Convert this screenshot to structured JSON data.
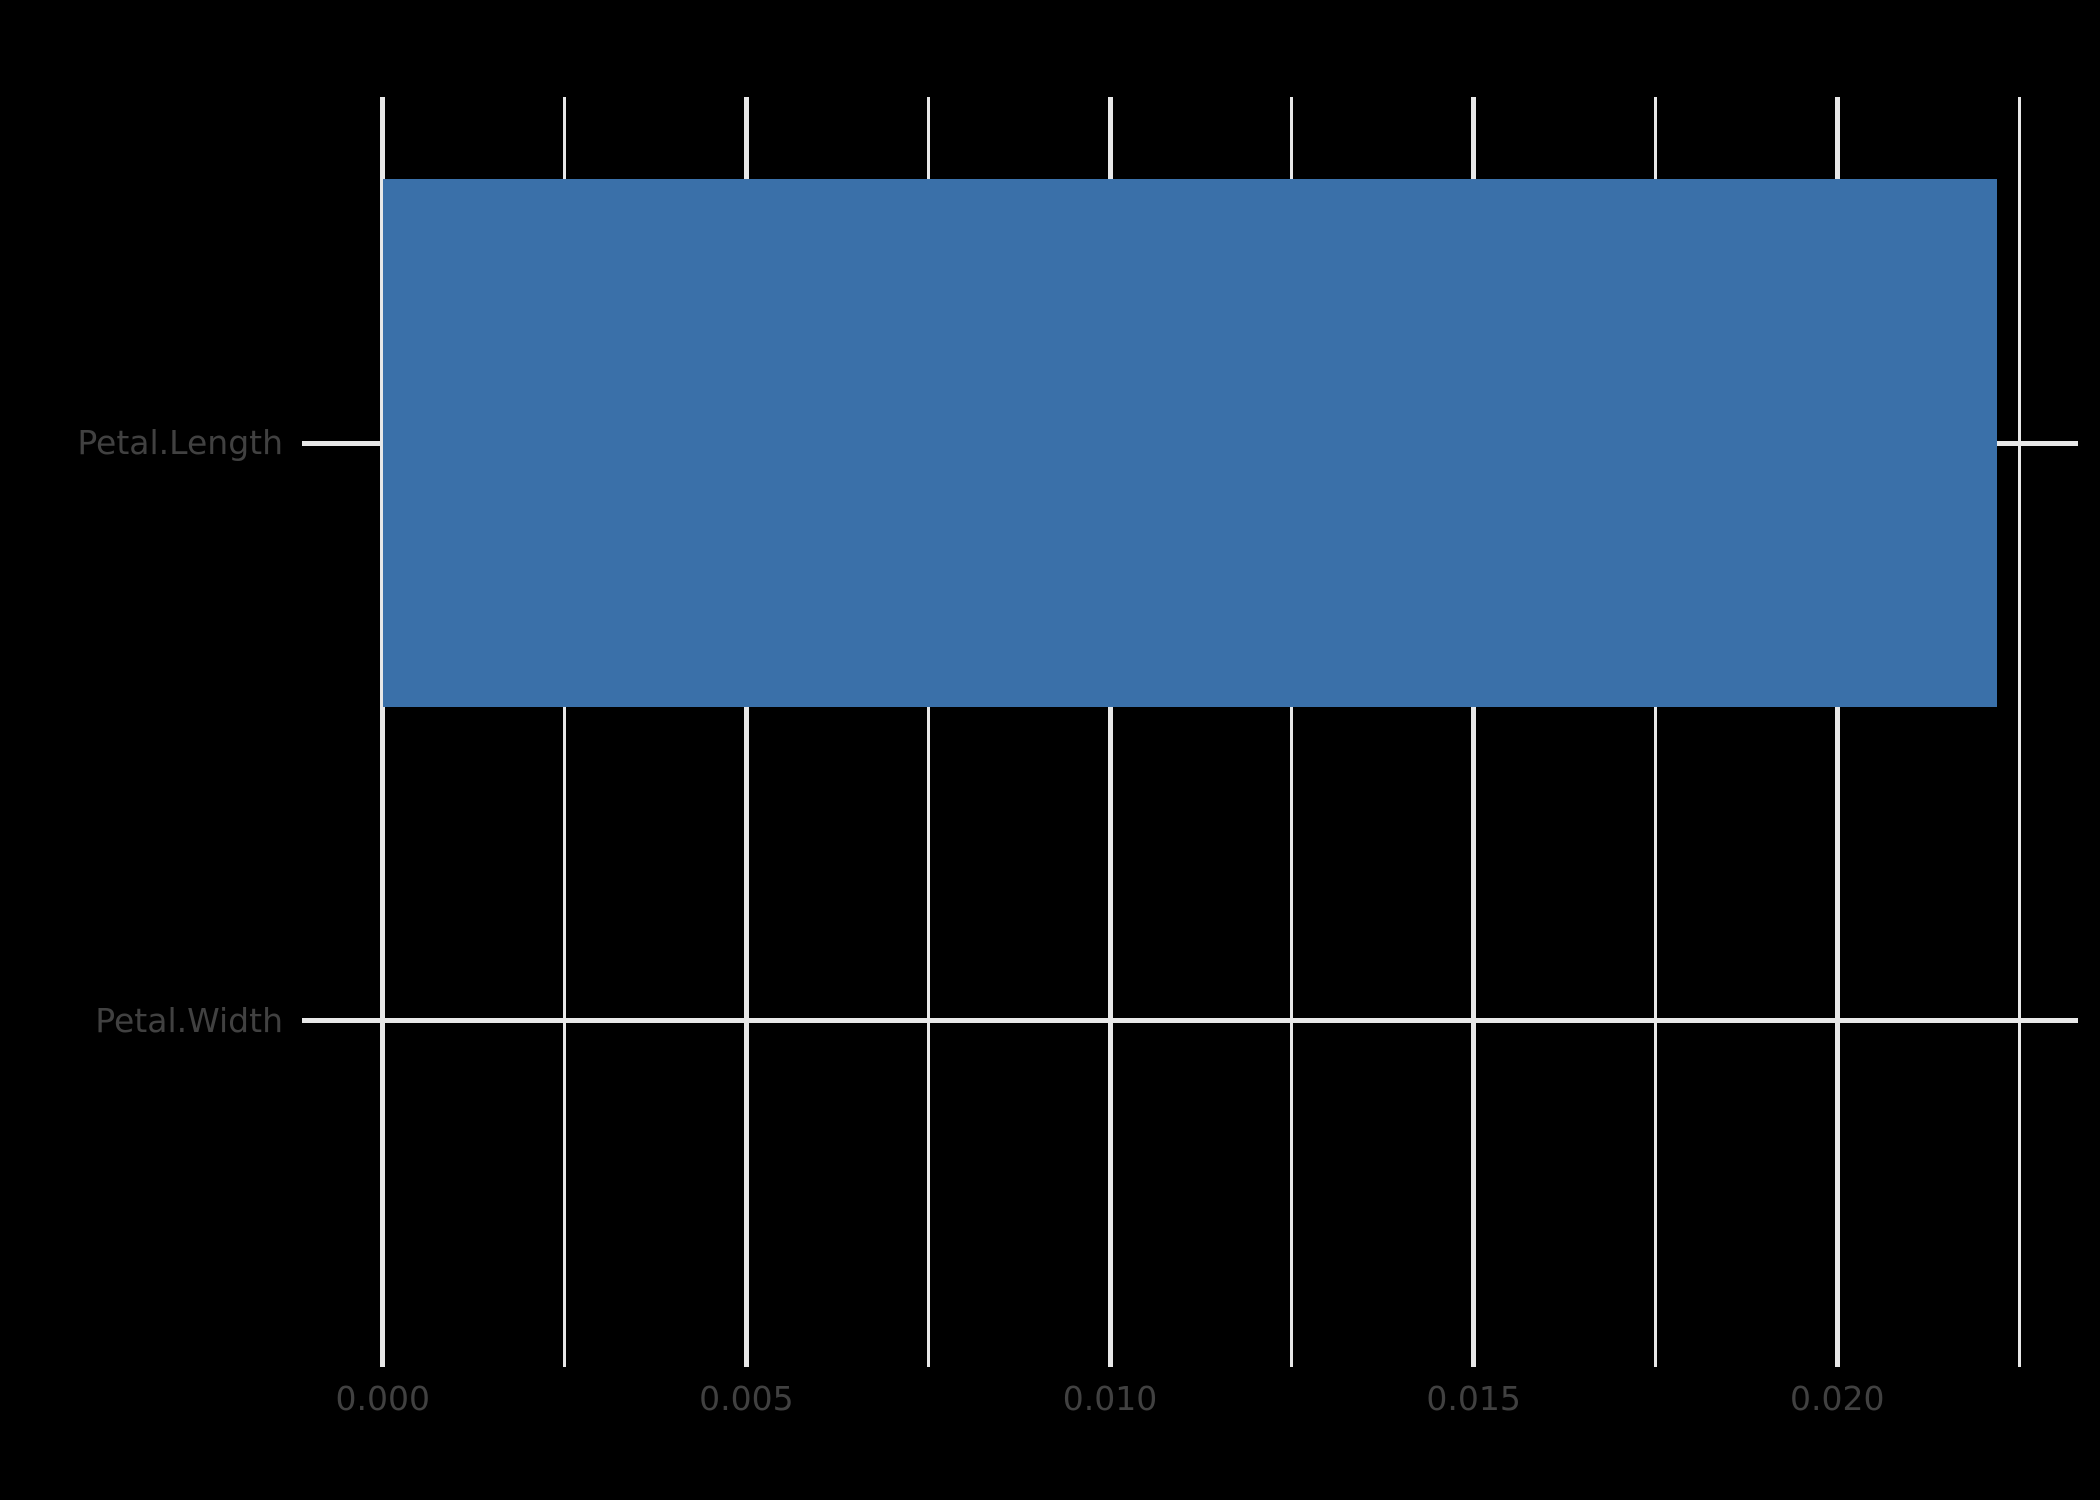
{
  "figure": {
    "title": "",
    "background": "#000000"
  },
  "chart_data": {
    "type": "bar",
    "orientation": "horizontal",
    "title": "",
    "xlabel": "",
    "ylabel": "",
    "categories": [
      "Petal.Length",
      "Petal.Width"
    ],
    "values": [
      0.0222,
      0
    ],
    "series_color": "#3A70A9",
    "x_ticks": {
      "values": [
        0,
        0.005,
        0.01,
        0.015,
        0.02
      ],
      "labels": [
        "0.000",
        "0.005",
        "0.010",
        "0.015",
        "0.020"
      ]
    },
    "x_minor_ticks": [
      0.0025,
      0.0075,
      0.0125,
      0.0175,
      0.0225
    ],
    "xlim": [
      -0.00111,
      0.02331
    ],
    "grid": "major-and-minor-vertical, major-horizontal",
    "grid_color": "#E8E8E8",
    "text_color": "#414141",
    "legend": "none"
  }
}
